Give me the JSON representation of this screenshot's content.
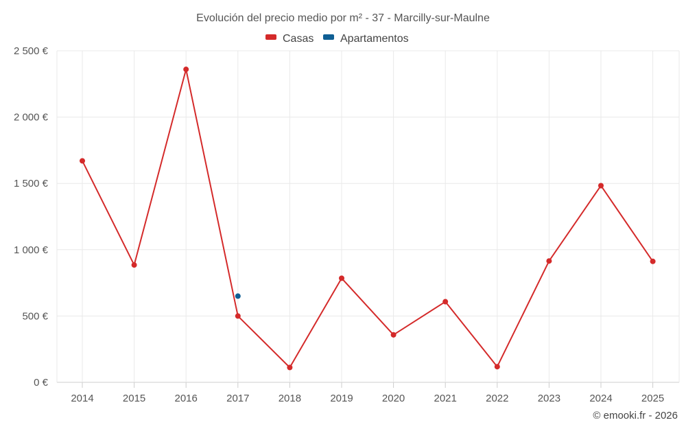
{
  "chart_data": {
    "type": "line",
    "title": "Evolución del precio medio por m² - 37 - Marcilly-sur-Maulne",
    "categories": [
      "2014",
      "2015",
      "2016",
      "2017",
      "2018",
      "2019",
      "2020",
      "2021",
      "2022",
      "2023",
      "2024",
      "2025"
    ],
    "series": [
      {
        "name": "Casas",
        "color": "#d42a2a",
        "values": [
          1670,
          885,
          2360,
          500,
          112,
          785,
          358,
          608,
          118,
          915,
          1483,
          912
        ]
      },
      {
        "name": "Apartamentos",
        "color": "#0f5f94",
        "values": [
          null,
          null,
          null,
          650,
          null,
          null,
          null,
          null,
          null,
          null,
          null,
          null
        ]
      }
    ],
    "ylim": [
      0,
      2500
    ],
    "yticks": [
      0,
      500,
      1000,
      1500,
      2000,
      2500
    ],
    "ytick_labels": [
      "0 €",
      "500 €",
      "1 000 €",
      "1 500 €",
      "2 000 €",
      "2 500 €"
    ],
    "xlabel": "",
    "ylabel": "",
    "grid": true,
    "legend_position": "top-center"
  },
  "credit": "© emooki.fr - 2026"
}
